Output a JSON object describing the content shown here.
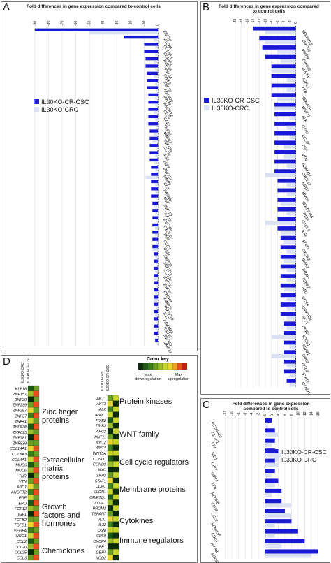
{
  "colors": {
    "cr_csc": "#1a1ad6",
    "crc": "#d9e1f2"
  },
  "panels": {
    "A": {
      "label": "A",
      "title": "Fold differences in gene expression compared to control cells"
    },
    "B": {
      "label": "B",
      "title": "Fold differences in gene expression compared to control cells"
    },
    "C": {
      "label": "C",
      "title": "Fold differences in gene expression compared to control cells"
    },
    "D": {
      "label": "D"
    }
  },
  "legendA": {
    "s1": "IL30KO-CR-CSC",
    "s2": "IL30KO-CRC"
  },
  "legendB": {
    "s1": "IL30KO-CR-CSC",
    "s2": "IL30KO-CRC"
  },
  "legendC": {
    "s1": "IL30KO-CR-CSC",
    "s2": "IL30KO-CRC"
  },
  "heatmap": {
    "colorkey_title": "Color key",
    "max_down": "Max downregulation",
    "max_up": "Max upregulation",
    "col1": "IL30KO-CRC",
    "col2": "IL30KO-CR-CSC",
    "groups_left": [
      "Zinc finger proteins",
      "Extracellular matrix proteins",
      "Growth factors and hormones",
      "Chemokines"
    ],
    "groups_right": [
      "Protein kinases",
      "WNT family",
      "Cell cycle regulators",
      "Membrane proteins",
      "Cytokines",
      "Immune regulators"
    ]
  },
  "chart_data": [
    {
      "type": "bar",
      "panel": "A",
      "orientation": "horizontal",
      "title": "Fold differences in gene expression compared to control cells",
      "xlabel": "",
      "ylabel": "",
      "xticks": [
        "-90",
        "-80",
        "-70",
        "-60",
        "-50",
        "-40",
        "-30",
        "-20",
        "-10",
        "0"
      ],
      "series": [
        {
          "name": "IL30KO-CR-CSC"
        },
        {
          "name": "IL30KO-CRC"
        }
      ],
      "categories": [
        "ZNF20",
        "VEGFA",
        "COL5A3",
        "COL4A1",
        "RAB3A",
        "WNT5A",
        "LYVE1",
        "ZNF10",
        "ADAM20",
        "WNT8",
        "ANGPT2",
        "CD59",
        "CCL2",
        "TNF10",
        "MMP17",
        "ZNF429",
        "CCR1",
        "IL32",
        "IGF1",
        "ZNF157",
        "MMP9",
        "CD1",
        "PROM2",
        "EGF",
        "ZNF781",
        "NLF18",
        "ZNF708",
        "CXCL11",
        "TNR",
        "CCR3",
        "OSM",
        "ZNF671",
        "ZNF200",
        "CCND2",
        "ZNF287",
        "ZNF37",
        "CXCR4",
        "MMP19",
        "TNFSF10",
        "IL13",
        "ADAM33",
        "RAB33",
        "ZNF581",
        "MMP13"
      ],
      "values_cr_csc": [
        -90,
        -25,
        -10,
        -10,
        -9,
        -9,
        -8,
        -8,
        -8,
        -7,
        -7,
        -7,
        -7,
        -7,
        -6,
        -6,
        -6,
        -6,
        -6,
        -5,
        -5,
        -5,
        -5,
        -5,
        -4,
        -4,
        -4,
        -4,
        -4,
        -4,
        -4,
        -3,
        -3,
        -3,
        -3,
        -3,
        -3,
        -3,
        -3,
        -3,
        -3,
        -3,
        -3,
        -2
      ],
      "values_crc": [
        -50,
        -3,
        -2,
        -2,
        -3,
        -2,
        -3,
        -2,
        -1,
        -2,
        -2,
        -3,
        -2,
        -1,
        -3,
        -4,
        -1,
        -2,
        -3,
        -2,
        -9,
        -2,
        -2,
        -1,
        -3,
        -2,
        -1,
        -2,
        -2,
        -1,
        -4,
        -2,
        -1,
        -2,
        -3,
        -1,
        -2,
        -3,
        -1,
        -2,
        -1,
        -2,
        -1,
        -1
      ],
      "xlim": [
        -95,
        2
      ]
    },
    {
      "type": "bar",
      "panel": "B",
      "orientation": "horizontal",
      "title": "Fold differences in gene expression compared to control cells",
      "xlabel": "",
      "ylabel": "",
      "xticks": [
        "-20",
        "-18",
        "-16",
        "-14",
        "-12",
        "-10",
        "-8",
        "-6",
        "-4",
        "-2",
        "0"
      ],
      "series": [
        {
          "name": "IL30KO-CR-CSC"
        },
        {
          "name": "IL30KO-CRC"
        }
      ],
      "categories": [
        "SERPINI2",
        "ZNF708",
        "MMP9",
        "ZNF695",
        "WNT4",
        "FGF12",
        "LTB",
        "SEMA5B",
        "WNT11",
        "ALK",
        "CCR1",
        "CCL20",
        "TNF",
        "VTN",
        "ADAM17",
        "CXCL17",
        "NRG1",
        "MUC6",
        "SERPINA5",
        "TRIB3",
        "CXCL5",
        "IL31",
        "STAT3",
        "CXCR2",
        "IRAK1",
        "TIRAP",
        "TGFB2",
        "AFC",
        "CCR6",
        "CRIPTO1",
        "AKT1",
        "TRIB2",
        "SOCS1",
        "TGFB1",
        "TRIB1",
        "CCL2",
        "STAT1",
        "CCND1"
      ],
      "values_cr_csc": [
        -14,
        -12,
        -11,
        -10,
        -8,
        -8,
        -8,
        -8,
        -7,
        -7,
        -7,
        -7,
        -7,
        -7,
        -7,
        -7,
        -6,
        -6,
        -6,
        -6,
        -6,
        -6,
        -5,
        -5,
        -5,
        -5,
        -5,
        -5,
        -5,
        -5,
        -5,
        -4,
        -4,
        -4,
        -4,
        -4,
        -4,
        -3
      ],
      "values_crc": [
        -10,
        -10,
        -6,
        -5,
        -8,
        -3,
        -3,
        -6,
        -7,
        -2,
        -3,
        -2,
        -4,
        -4,
        -3,
        -10,
        -3,
        -3,
        -5,
        -3,
        -10,
        -5,
        -4,
        -3,
        -4,
        -3,
        -3,
        -4,
        -3,
        -3,
        -3,
        -3,
        -8,
        -2,
        -8,
        -3,
        -2,
        -2
      ],
      "xlim": [
        -21,
        1
      ]
    },
    {
      "type": "bar",
      "panel": "C",
      "orientation": "horizontal",
      "title": "Fold differences in gene expression compared to control cells",
      "xlabel": "",
      "ylabel": "",
      "xticks": [
        "-12",
        "-10",
        "-8",
        "-6",
        "-4",
        "-2",
        "0",
        "2",
        "4",
        "6",
        "8",
        "10",
        "12",
        "14",
        "16"
      ],
      "series": [
        {
          "name": "IL30KO-CR-CSC"
        },
        {
          "name": "IL30KO-CRC"
        }
      ],
      "categories": [
        "PCDHA10",
        "CLDN1",
        "VIM",
        "NID1",
        "CIITA",
        "GBP4",
        "TTN",
        "PCDH8",
        "CD36",
        "CCL3",
        "SEMA3A",
        "CDCJ",
        "RARB",
        "SOCS3"
      ],
      "values_cr_csc": [
        2,
        3,
        3,
        3,
        3,
        3,
        4,
        5,
        5,
        6,
        8,
        10,
        12,
        16
      ],
      "values_crc": [
        1,
        4,
        2,
        5,
        4,
        2,
        3,
        2,
        8,
        8,
        3,
        3,
        5,
        14
      ],
      "xlim": [
        -13,
        17
      ]
    },
    {
      "type": "heatmap",
      "panel": "D",
      "columns": [
        "IL30KO-CRC",
        "IL30KO-CR-CSC"
      ],
      "rows_left": [
        "KLF18",
        "ZNF157",
        "ZNF20",
        "ZNF239",
        "ZNF287",
        "ZNF37",
        "ZNF41",
        "ZNF578",
        "ZNF695",
        "ZNF781",
        "ZNF839",
        "COL14A1",
        "COL5A3",
        "COL4A1",
        "MUC6",
        "MUC6",
        "TNR",
        "VTN",
        "MID1",
        "ANGPT2",
        "EGF",
        "EPO",
        "FGF12",
        "IGF1",
        "TGFB2",
        "TGFB1",
        "VEGFA",
        "NRG1",
        "CCL2",
        "CCL20",
        "CCL25",
        "CCL3"
      ],
      "rows_right": [
        "AKT1",
        "AKT3",
        "ALK",
        "IRAK1",
        "TRIB2",
        "TRIB3",
        "APC2",
        "WNT11",
        "WNT2",
        "WNT4",
        "WNT5A",
        "CCND1",
        "CCND2",
        "MYC",
        "SKP2",
        "STAT1",
        "CDH1",
        "CLDN1",
        "CRIPTO1",
        "LYVE1",
        "PROM2",
        "TSPAN7",
        "IL31",
        "IL32",
        "OSM",
        "CD59",
        "CXCR4",
        "GBP1",
        "GBP4",
        "NOD2"
      ]
    }
  ]
}
